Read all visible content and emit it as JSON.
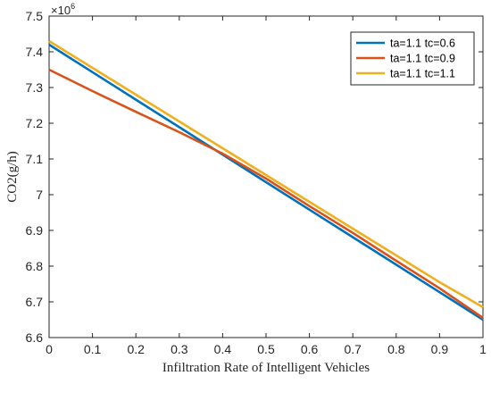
{
  "chart_data": {
    "type": "line",
    "title": "",
    "xlabel": "Infiltration Rate of Intelligent Vehicles",
    "ylabel": "CO2(g/h)",
    "y_multiplier_base": "×10",
    "y_multiplier_exp": "6",
    "xlim": [
      0,
      1
    ],
    "ylim": [
      6.6,
      7.5
    ],
    "xticks": [
      0,
      0.1,
      0.2,
      0.3,
      0.4,
      0.5,
      0.6,
      0.7,
      0.8,
      0.9,
      1
    ],
    "xtick_labels": [
      "0",
      "0.1",
      "0.2",
      "0.3",
      "0.4",
      "0.5",
      "0.6",
      "0.7",
      "0.8",
      "0.9",
      "1"
    ],
    "yticks": [
      6.6,
      6.7,
      6.8,
      6.9,
      7.0,
      7.1,
      7.2,
      7.3,
      7.4,
      7.5
    ],
    "ytick_labels": [
      "6.6",
      "6.7",
      "6.8",
      "6.9",
      "7",
      "7.1",
      "7.2",
      "7.3",
      "7.4",
      "7.5"
    ],
    "grid": false,
    "legend_position": "top-right",
    "series": [
      {
        "name": "ta=1.1 tc=0.6",
        "color": "#0072BD",
        "x": [
          0,
          0.1,
          0.2,
          0.3,
          0.4,
          0.5,
          0.6,
          0.7,
          0.8,
          0.9,
          1
        ],
        "values": [
          7.42,
          7.343,
          7.266,
          7.189,
          7.112,
          7.035,
          6.958,
          6.881,
          6.804,
          6.727,
          6.65
        ]
      },
      {
        "name": "ta=1.1 tc=0.9",
        "color": "#D95319",
        "x": [
          0,
          0.1,
          0.2,
          0.3,
          0.4,
          0.5,
          0.6,
          0.7,
          0.8,
          0.9,
          1
        ],
        "values": [
          7.35,
          7.29,
          7.232,
          7.175,
          7.115,
          7.045,
          6.968,
          6.893,
          6.815,
          6.738,
          6.655
        ]
      },
      {
        "name": "ta=1.1 tc=1.1",
        "color": "#EDB120",
        "x": [
          0,
          0.1,
          0.2,
          0.3,
          0.4,
          0.5,
          0.6,
          0.7,
          0.8,
          0.9,
          1
        ],
        "values": [
          7.43,
          7.355,
          7.28,
          7.205,
          7.13,
          7.055,
          6.98,
          6.905,
          6.83,
          6.755,
          6.685
        ]
      }
    ]
  }
}
